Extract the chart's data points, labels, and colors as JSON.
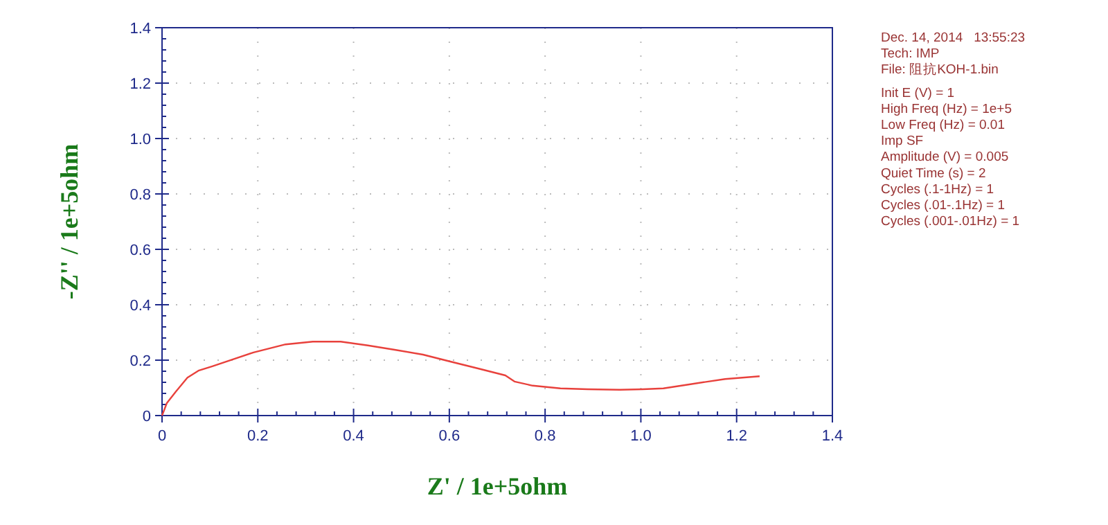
{
  "chart_data": {
    "type": "line",
    "xlabel": "Z' / 1e+5ohm",
    "ylabel": "-Z'' / 1e+5ohm",
    "x": [
      0,
      0.01,
      0.029,
      0.053,
      0.076,
      0.105,
      0.191,
      0.258,
      0.315,
      0.373,
      0.43,
      0.488,
      0.545,
      0.602,
      0.66,
      0.717,
      0.736,
      0.774,
      0.832,
      0.889,
      0.956,
      1.004,
      1.047,
      1.099,
      1.176,
      1.248
    ],
    "series": [
      {
        "color": "#e8413c",
        "values": [
          0,
          0.045,
          0.087,
          0.137,
          0.162,
          0.178,
          0.228,
          0.257,
          0.267,
          0.267,
          0.253,
          0.237,
          0.22,
          0.195,
          0.17,
          0.145,
          0.123,
          0.108,
          0.098,
          0.095,
          0.093,
          0.095,
          0.098,
          0.112,
          0.132,
          0.142
        ]
      }
    ],
    "xlim": [
      0,
      1.4
    ],
    "ylim": [
      0,
      1.4
    ],
    "xticks": [
      0,
      0.2,
      0.4,
      0.6,
      0.8,
      {
        "value": 1,
        "label": "1.0"
      },
      1.2,
      1.4
    ],
    "yticks": [
      0,
      0.2,
      0.4,
      0.6,
      0.8,
      {
        "value": 1,
        "label": "1.0"
      },
      1.2,
      1.4
    ],
    "grid": true,
    "marker": "none",
    "line_style": "solid",
    "annotations": [
      "Dec. 14, 2014   13:55:23",
      "Tech: IMP",
      "File: 阻抗KOH-1.bin",
      "Init E (V) = 1",
      "High Freq (Hz) = 1e+5",
      "Low Freq (Hz) = 0.01",
      "Imp SF",
      "Amplitude (V) = 0.005",
      "Quiet Time (s) = 2",
      "Cycles (.1-1Hz) = 1",
      "Cycles (.01-.1Hz) = 1",
      "Cycles (.001-.01Hz) = 1"
    ]
  }
}
